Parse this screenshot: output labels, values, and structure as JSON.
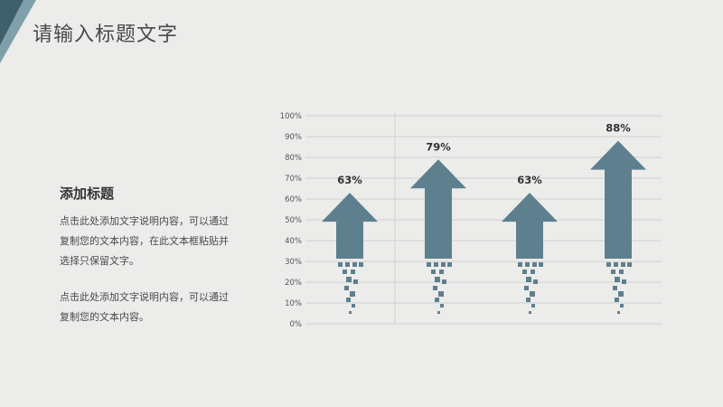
{
  "slide": {
    "title": "请输入标题文字",
    "subtitle": "添加标题",
    "paragraph1": "点击此处添加文字说明内容，可以通过复制您的文本内容，在此文本框粘贴并选择只保留文字。",
    "paragraph2": "点击此处添加文字说明内容，可以通过复制您的文本内容。"
  },
  "colors": {
    "arrow": "#5e7f8e",
    "corner_dark": "#3f5f6c",
    "corner_light": "#7fa0aa",
    "grid": "#c9c9c9"
  },
  "chart_data": {
    "type": "bar",
    "mark_shape": "arrow",
    "values": [
      63,
      79,
      63,
      88
    ],
    "data_labels": [
      "63%",
      "79%",
      "63%",
      "88%"
    ],
    "y_ticks": [
      "0%",
      "10%",
      "20%",
      "30%",
      "40%",
      "50%",
      "60%",
      "70%",
      "80%",
      "90%",
      "100%"
    ],
    "ylim": [
      0,
      100
    ],
    "grid": true
  }
}
